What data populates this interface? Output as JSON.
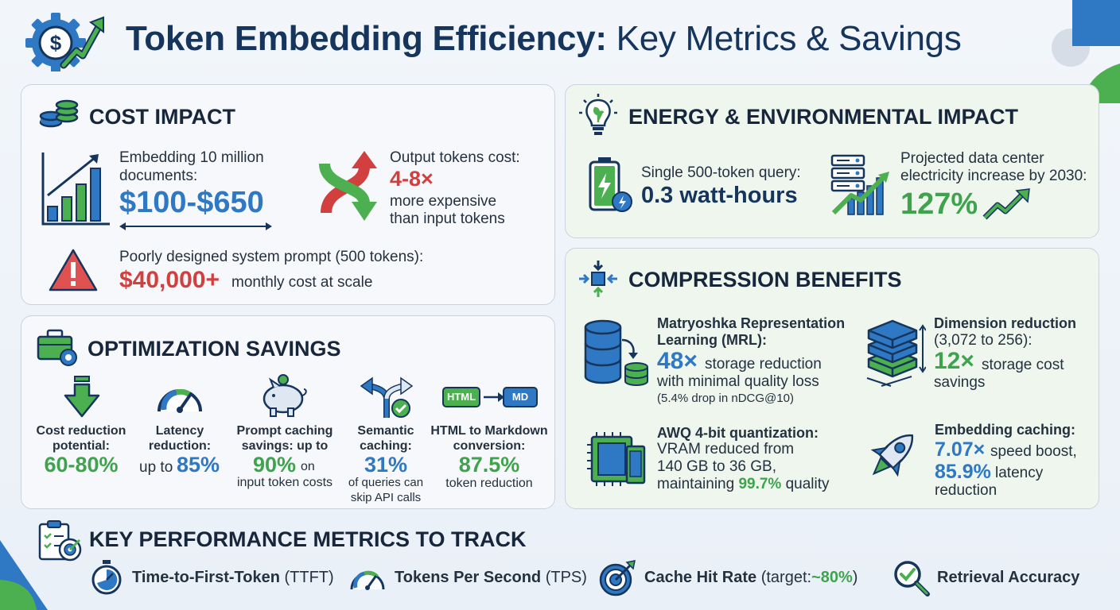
{
  "title": {
    "bold": "Token Embedding Efficiency:",
    "light": "Key Metrics & Savings"
  },
  "colors": {
    "blue": "#2f78c4",
    "green": "#3fa34d",
    "red": "#d13f3f",
    "navy": "#16355c"
  },
  "cost": {
    "heading": "COST IMPACT",
    "embed_label_1": "Embedding 10 million",
    "embed_label_2": "documents:",
    "embed_value": "$100-$650",
    "output_label": "Output tokens cost:",
    "output_value": "4-8×",
    "output_desc_1": "more expensive",
    "output_desc_2": "than input tokens",
    "prompt_label": "Poorly designed system prompt (500 tokens):",
    "prompt_value": "$40,000+",
    "prompt_desc": "monthly cost at scale"
  },
  "energy": {
    "heading": "ENERGY & ENVIRONMENTAL IMPACT",
    "query_label": "Single 500-token query:",
    "query_value": "0.3 watt-hours",
    "dc_label_1": "Projected data center",
    "dc_label_2": "electricity increase by 2030:",
    "dc_value": "127%"
  },
  "optimization": {
    "heading": "OPTIMIZATION SAVINGS",
    "items": [
      {
        "label_1": "Cost reduction",
        "label_2": "potential:",
        "value": "60-80%"
      },
      {
        "label_1": "Latency",
        "label_2": "reduction:",
        "prefix": "up to",
        "value": "85%"
      },
      {
        "label_1": "Prompt caching",
        "label_2": "savings: up to",
        "value": "90%",
        "suffix": "on",
        "desc": "input token costs"
      },
      {
        "label_1": "Semantic",
        "label_2": "caching:",
        "value": "31%",
        "desc_1": "of queries can",
        "desc_2": "skip API calls"
      },
      {
        "label_1": "HTML to Markdown",
        "label_2": "conversion:",
        "value": "87.5%",
        "desc": "token reduction",
        "tag_from": "HTML",
        "tag_to": "MD"
      }
    ]
  },
  "compression": {
    "heading": "COMPRESSION BENEFITS",
    "mrl": {
      "title_1": "Matryoshka Representation",
      "title_2": "Learning (MRL):",
      "value": "48×",
      "desc_1": "storage reduction",
      "desc_2": "with minimal quality loss",
      "note": "(5.4% drop in nDCG@10)"
    },
    "dim": {
      "title": "Dimension reduction",
      "sub": "(3,072 to 256):",
      "value": "12×",
      "desc_1": "storage cost",
      "desc_2": "savings"
    },
    "awq": {
      "title": "AWQ 4-bit quantization:",
      "desc_1": "VRAM reduced from",
      "desc_2": "140 GB to 36 GB,",
      "desc_3_pre": "maintaining",
      "desc_3_val": "99.7%",
      "desc_3_post": "quality"
    },
    "cache": {
      "title": "Embedding caching:",
      "value_1": "7.07×",
      "desc_1": "speed boost,",
      "value_2": "85.9%",
      "desc_2": "latency",
      "desc_3": "reduction"
    }
  },
  "kpi": {
    "heading": "KEY PERFORMANCE METRICS TO TRACK",
    "items": [
      {
        "bold": "Time-to-First-Token",
        "rest": "(TTFT)"
      },
      {
        "bold": "Tokens Per Second",
        "rest": "(TPS)"
      },
      {
        "bold": "Cache Hit Rate",
        "rest": "(target:",
        "value": "~80%",
        "close": ")"
      },
      {
        "bold": "Retrieval Accuracy",
        "rest": ""
      }
    ]
  }
}
